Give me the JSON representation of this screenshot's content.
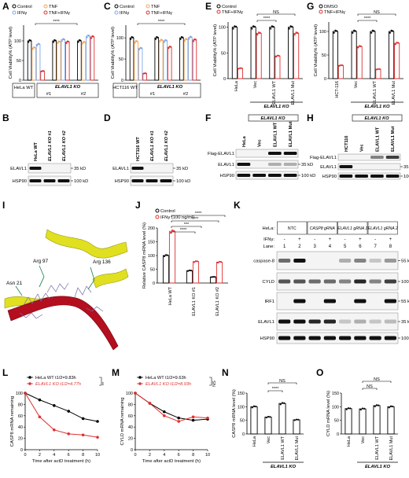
{
  "colors": {
    "black": "#000000",
    "orange": "#f2a65a",
    "blue": "#7fa8e6",
    "red": "#e03030",
    "grey": "#9a9a9a",
    "ribbon": "#b30f1e",
    "helix": "#e0e020"
  },
  "panelA": {
    "letter": "A",
    "legend": [
      "Control",
      "TNF",
      "IFNγ",
      "TNF+IFNγ"
    ],
    "ylabel": "Cell Viability% (ATP level)",
    "yticks": [
      "0",
      "50",
      "100"
    ],
    "groups": [
      "HeLa WT",
      "#1",
      "#2"
    ],
    "ko": "ELAVL1 KO",
    "sig": "****",
    "chart_data": {
      "type": "bar",
      "categories": [
        "HeLa WT",
        "ELAVL1 KO #1",
        "ELAVL1 KO #2"
      ],
      "series": [
        {
          "name": "Control",
          "values": [
            100,
            100,
            100
          ]
        },
        {
          "name": "TNF",
          "values": [
            82,
            97,
            96
          ]
        },
        {
          "name": "IFNγ",
          "values": [
            91,
            103,
            112
          ]
        },
        {
          "name": "TNF+IFNγ",
          "values": [
            23,
            97,
            110
          ]
        }
      ],
      "ylim": [
        0,
        140
      ]
    }
  },
  "panelB": {
    "letter": "B",
    "cols": [
      "HeLa WT",
      "ELAVL1 KO #1",
      "ELAVL1 KO #2"
    ],
    "rows": [
      "ELAVL1",
      "HSP90"
    ],
    "kd": [
      "35 kD",
      "100 kD"
    ]
  },
  "panelC": {
    "letter": "C",
    "legend": [
      "Control",
      "TNF",
      "IFNγ",
      "TNF+IFNγ"
    ],
    "ylabel": "Cell Viability% (ATP level)",
    "yticks": [
      "0",
      "50",
      "100"
    ],
    "groups": [
      "HCT116 WT",
      "#1",
      "#2"
    ],
    "ko": "ELAVL1 KO",
    "sig": "****",
    "chart_data": {
      "type": "bar",
      "categories": [
        "HCT116 WT",
        "ELAVL1 KO #1",
        "ELAVL1 KO #2"
      ],
      "series": [
        {
          "name": "Control",
          "values": [
            100,
            100,
            100
          ]
        },
        {
          "name": "TNF",
          "values": [
            91,
            94,
            96
          ]
        },
        {
          "name": "IFNγ",
          "values": [
            75,
            93,
            101
          ]
        },
        {
          "name": "TNF+IFNγ",
          "values": [
            16,
            78,
            95
          ]
        }
      ],
      "ylim": [
        0,
        130
      ]
    }
  },
  "panelD": {
    "letter": "D",
    "cols": [
      "HCT116 WT",
      "ELAVL1 KO #1",
      "ELAVL1 KO #2"
    ],
    "rows": [
      "ELAVL1",
      "HSP90"
    ],
    "kd": [
      "35 kD",
      "100 kD"
    ]
  },
  "panelE": {
    "letter": "E",
    "legend": [
      "Control",
      "TNF+IFNγ"
    ],
    "ylabel": "Cell Viability% (ATP level)",
    "yticks": [
      "0",
      "50",
      "100"
    ],
    "groups": [
      "HeLa",
      "Vec",
      "ELAVL1 WT",
      "ELAVL1 Mut"
    ],
    "ko": "ELAVL1 KO",
    "sig": [
      "****",
      "NS"
    ],
    "chart_data": {
      "type": "bar",
      "categories": [
        "HeLa",
        "Vec",
        "ELAVL1 WT",
        "ELAVL1 Mut"
      ],
      "series": [
        {
          "name": "Control",
          "values": [
            100,
            100,
            100,
            100
          ]
        },
        {
          "name": "TNF+IFNγ",
          "values": [
            20,
            88,
            44,
            88
          ]
        }
      ],
      "ylim": [
        0,
        110
      ]
    }
  },
  "panelF": {
    "letter": "F",
    "ko": "ELAVL1 KO",
    "cols": [
      "HeLa",
      "Vec",
      "ELAVL1 WT",
      "ELAVL1 Mut"
    ],
    "rows": [
      "Flag-ELAVL1",
      "ELAVL1",
      "HSP90"
    ],
    "kd": [
      "35 kD",
      "100 kD"
    ]
  },
  "panelG": {
    "letter": "G",
    "legend": [
      "DMSO",
      "TNF+IFNγ"
    ],
    "ylabel": "Cell Viability% (ATP level)",
    "yticks": [
      "0",
      "50",
      "100"
    ],
    "groups": [
      "HCT-116",
      "Vec",
      "ELAVL1 WT",
      "ELAVL1 Mut"
    ],
    "ko": "ELAVL1 KO",
    "sig": [
      "****",
      "NS"
    ],
    "chart_data": {
      "type": "bar",
      "categories": [
        "HCT-116",
        "Vec",
        "ELAVL1 WT",
        "ELAVL1 Mut"
      ],
      "series": [
        {
          "name": "DMSO",
          "values": [
            100,
            100,
            100,
            100
          ]
        },
        {
          "name": "TNF+IFNγ",
          "values": [
            28,
            68,
            20,
            75
          ]
        }
      ],
      "ylim": [
        0,
        120
      ]
    }
  },
  "panelH": {
    "letter": "H",
    "ko": "ELAVL1 KO",
    "cols": [
      "HCT116",
      "Vec",
      "ELAVL1 WT",
      "ELAVL1 Mut"
    ],
    "rows": [
      "Flag-ELAVL1",
      "ELAVL1",
      "HSP90"
    ],
    "kd": [
      "35 kD",
      "100 kD"
    ]
  },
  "panelI": {
    "letter": "I",
    "labels": [
      "Arg 97",
      "Asn 21",
      "Arg 136"
    ]
  },
  "panelJ": {
    "letter": "J",
    "legend": [
      "Control",
      "IFNγ (100 ng/ml)"
    ],
    "ylabel": "Relative CASP8 mRNA level (%)",
    "yticks": [
      "0",
      "50",
      "100",
      "150",
      "200"
    ],
    "groups": [
      "HeLa WT",
      "ELAVL1 KO #1",
      "ELAVL1 KO #2"
    ],
    "sig": [
      "****",
      "***",
      "****",
      "****"
    ],
    "chart_data": {
      "type": "bar",
      "categories": [
        "HeLa WT",
        "ELAVL1 KO #1",
        "ELAVL1 KO #2"
      ],
      "series": [
        {
          "name": "Control",
          "values": [
            100,
            45,
            22
          ]
        },
        {
          "name": "IFNγ (100 ng/ml)",
          "values": [
            188,
            78,
            76
          ]
        }
      ],
      "ylim": [
        0,
        200
      ]
    }
  },
  "panelK": {
    "letter": "K",
    "hela": "HeLa:",
    "ifn": "IFNγ:",
    "lane": "Lane:",
    "groups": [
      "NTC",
      "CASP8 gRNA",
      "ELAVL1 gRNA 1",
      "ELAVL1 gRNA 2"
    ],
    "signs": [
      "-",
      "+",
      "-",
      "+",
      "-",
      "+",
      "-",
      "+"
    ],
    "lanes": [
      "1",
      "2",
      "3",
      "4",
      "5",
      "6",
      "7",
      "8"
    ],
    "rows": [
      "caspase-8",
      "CYLD",
      "IRF1",
      "ELAVL1",
      "HSP90"
    ],
    "kd": [
      "55 kD",
      "100 kD",
      "55 kD",
      "35 kD",
      "100 kD"
    ]
  },
  "panelL": {
    "letter": "L",
    "legend": [
      "HeLa WT t1/2=9.83h",
      "ELAVL1 KO t1/2=4.77h"
    ],
    "sig": "**",
    "ylabel": "CASP8 mRNA remaining",
    "xlabel": "Time after actD treatment (h)",
    "yticks": [
      "0",
      "20",
      "40",
      "60",
      "80",
      "100"
    ],
    "xticks": [
      "0",
      "2",
      "4",
      "6",
      "8",
      "10"
    ],
    "chart_data": {
      "type": "line",
      "x": [
        0,
        2,
        4,
        6,
        8,
        10
      ],
      "series": [
        {
          "name": "HeLa WT t1/2=9.83h",
          "values": [
            100,
            88,
            78,
            68,
            55,
            50
          ]
        },
        {
          "name": "ELAVL1 KO t1/2=4.77h",
          "values": [
            100,
            58,
            35,
            28,
            26,
            22
          ]
        }
      ],
      "ylim": [
        0,
        100
      ],
      "xlim": [
        0,
        10
      ]
    }
  },
  "panelM": {
    "letter": "M",
    "legend": [
      "HeLa WT t1/2=9.63h",
      "ELAVL1 KO t1/2=8.93h"
    ],
    "sig": "NS",
    "ylabel": "CYLD mRNA remaining",
    "xlabel": "Time after actD treatment (h)",
    "yticks": [
      "0",
      "20",
      "40",
      "60",
      "80",
      "100"
    ],
    "xticks": [
      "0",
      "2",
      "4",
      "6",
      "8",
      "10"
    ],
    "chart_data": {
      "type": "line",
      "x": [
        0,
        2,
        4,
        6,
        8,
        10
      ],
      "series": [
        {
          "name": "HeLa WT t1/2=9.63h",
          "values": [
            100,
            82,
            67,
            56,
            52,
            54
          ]
        },
        {
          "name": "ELAVL1 KO t1/2=8.93h",
          "values": [
            100,
            82,
            60,
            50,
            58,
            56
          ]
        }
      ],
      "ylim": [
        0,
        100
      ],
      "xlim": [
        0,
        10
      ]
    }
  },
  "panelN": {
    "letter": "N",
    "ylabel": "CASP8 mRNA level (%)",
    "yticks": [
      "0",
      "50",
      "100",
      "150"
    ],
    "groups": [
      "HeLa",
      "Vec",
      "ELAVL1 WT",
      "ELAVL1 Mut"
    ],
    "ko": "ELAVL1 KO",
    "sig": [
      "****",
      "NS"
    ],
    "chart_data": {
      "type": "bar",
      "categories": [
        "HeLa",
        "Vec",
        "ELAVL1 WT",
        "ELAVL1 Mut"
      ],
      "values": [
        100,
        62,
        112,
        52
      ],
      "ylim": [
        0,
        150
      ]
    }
  },
  "panelO": {
    "letter": "O",
    "ylabel": "CYLD mRNA level (%)",
    "yticks": [
      "0",
      "50",
      "100",
      "150"
    ],
    "groups": [
      "HeLa",
      "Vec",
      "ELAVL1 WT",
      "ELAVL1 Mut"
    ],
    "ko": "ELAVL1 KO",
    "sig": [
      "NS",
      "NS"
    ],
    "chart_data": {
      "type": "bar",
      "categories": [
        "HeLa",
        "Vec",
        "ELAVL1 WT",
        "ELAVL1 Mut"
      ],
      "values": [
        93,
        92,
        104,
        100
      ],
      "ylim": [
        0,
        150
      ]
    }
  }
}
